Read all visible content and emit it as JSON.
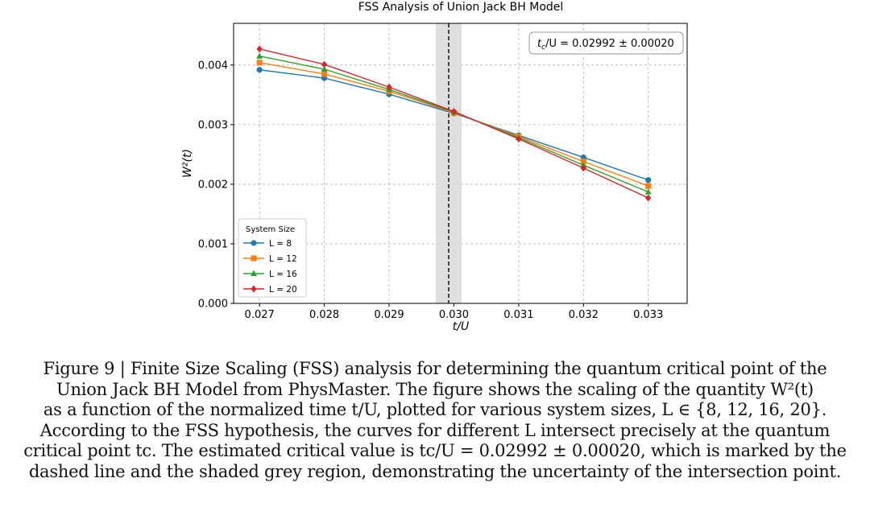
{
  "chart_data": {
    "type": "line",
    "title": "FSS Analysis of Union Jack BH Model",
    "xlabel": "t/U",
    "ylabel": "W²(t)",
    "x": [
      0.027,
      0.028,
      0.029,
      0.03,
      0.031,
      0.032,
      0.033
    ],
    "xticks": [
      "0.027",
      "0.028",
      "0.029",
      "0.030",
      "0.031",
      "0.032",
      "0.033"
    ],
    "yticks": [
      "0.000",
      "0.001",
      "0.002",
      "0.003",
      "0.004"
    ],
    "xlim": [
      0.0266,
      0.0336
    ],
    "ylim": [
      0.0,
      0.0047
    ],
    "grid": true,
    "legend": {
      "title": "System Size",
      "placement": "lower-left",
      "labels": [
        "L = 8",
        "L = 12",
        "L = 16",
        "L = 20"
      ]
    },
    "series": [
      {
        "name": "L = 8",
        "color": "#1f77b4",
        "marker": "circle",
        "values": [
          0.00392,
          0.00378,
          0.00351,
          0.00319,
          0.00282,
          0.00245,
          0.00207
        ]
      },
      {
        "name": "L = 12",
        "color": "#ff7f0e",
        "marker": "square",
        "values": [
          0.00404,
          0.00385,
          0.00356,
          0.0032,
          0.0028,
          0.00238,
          0.00197
        ]
      },
      {
        "name": "L = 16",
        "color": "#2ca02c",
        "marker": "triangle",
        "values": [
          0.00415,
          0.00393,
          0.00359,
          0.00321,
          0.00278,
          0.00232,
          0.00187
        ]
      },
      {
        "name": "L = 20",
        "color": "#d62728",
        "marker": "diamond",
        "values": [
          0.00427,
          0.00401,
          0.00363,
          0.00322,
          0.00276,
          0.00227,
          0.00177
        ]
      }
    ],
    "critical_point": {
      "value": 0.02992,
      "uncertainty": 0.0002
    },
    "annotation": {
      "lhs": "t",
      "sub": "c",
      "rest": "/U = 0.02992 ± 0.00020"
    }
  },
  "caption": {
    "lines": [
      "Figure 9 | Finite Size Scaling (FSS) analysis for determining the quantum critical point of the",
      "Union Jack BH Model from PhysMaster. The figure shows the scaling of the quantity W²(t)",
      "as a function of the normalized time t/U, plotted for various system sizes, L ∈ {8, 12, 16, 20}.",
      "According to the FSS hypothesis, the curves for different L intersect precisely at the quantum",
      "critical point tc. The estimated critical value is tc/U = 0.02992 ± 0.00020, which is marked by the",
      "dashed line and the shaded grey region, demonstrating the uncertainty of the intersection point."
    ]
  }
}
